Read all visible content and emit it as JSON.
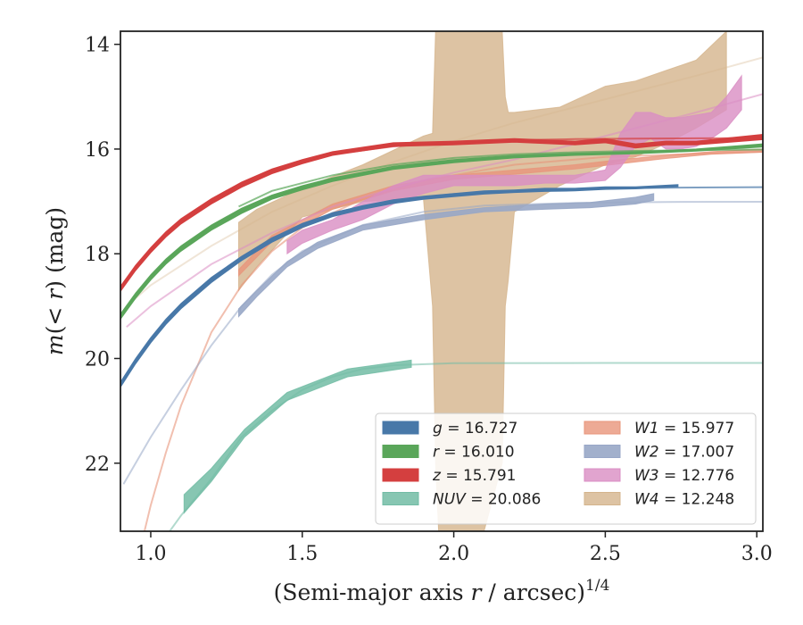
{
  "chart_data": {
    "type": "line",
    "xlabel": "(Semi-major axis r / arcsec)",
    "xlabel_exponent": "1/4",
    "ylabel": "m(< r) (mag)",
    "xlim": [
      0.9,
      3.02
    ],
    "ylim": [
      23.3,
      13.75
    ],
    "y_inverted": true,
    "grid": false,
    "legend_position": "lower-right",
    "xticks": [
      {
        "v": 1.0,
        "label": "1.0"
      },
      {
        "v": 1.5,
        "label": "1.5"
      },
      {
        "v": 2.0,
        "label": "2.0"
      },
      {
        "v": 2.5,
        "label": "2.5"
      },
      {
        "v": 3.0,
        "label": "3.0"
      }
    ],
    "yticks": [
      {
        "v": 14,
        "label": "14"
      },
      {
        "v": 16,
        "label": "16"
      },
      {
        "v": 18,
        "label": "18"
      },
      {
        "v": 20,
        "label": "20"
      },
      {
        "v": 22,
        "label": "22"
      }
    ],
    "legend": [
      {
        "key": "g",
        "band": "g",
        "value": "= 16.727"
      },
      {
        "key": "r",
        "band": "r",
        "value": "= 16.010"
      },
      {
        "key": "z",
        "band": "z",
        "value": "= 15.791"
      },
      {
        "key": "nuv",
        "band": "NUV",
        "value": "= 20.086"
      },
      {
        "key": "w1",
        "band": "W1",
        "value": "= 15.977"
      },
      {
        "key": "w2",
        "band": "W2",
        "value": "= 17.007"
      },
      {
        "key": "w3",
        "band": "W3",
        "value": "= 12.776"
      },
      {
        "key": "w4",
        "band": "W4",
        "value": "= 12.248"
      }
    ],
    "series": [
      {
        "key": "w4",
        "color": "#d4b48c",
        "opacity": 0.8,
        "model": {
          "x": [
            0.92,
            1.0,
            1.2,
            1.4,
            1.6,
            1.8,
            2.0,
            2.2,
            2.4,
            2.6,
            2.8,
            3.02
          ],
          "y": [
            19.0,
            18.6,
            17.85,
            17.2,
            16.7,
            16.25,
            15.85,
            15.5,
            15.2,
            14.9,
            14.6,
            14.25
          ],
          "opacity": 0.35
        },
        "band": {
          "x": [
            1.29,
            1.35,
            1.5,
            1.7,
            1.9,
            1.93,
            1.94,
            1.95,
            2.1,
            2.16,
            2.17,
            2.18,
            2.2,
            2.35,
            2.5,
            2.6,
            2.7,
            2.8,
            2.9
          ],
          "lo": [
            17.4,
            17.15,
            16.75,
            16.3,
            15.75,
            15.7,
            13.75,
            13.75,
            13.75,
            13.75,
            15.0,
            15.3,
            15.3,
            15.2,
            14.8,
            14.7,
            14.5,
            14.3,
            13.75
          ],
          "hi": [
            18.7,
            18.25,
            17.3,
            17.0,
            16.95,
            19.0,
            22.0,
            23.3,
            23.3,
            22.0,
            19.0,
            18.5,
            17.2,
            16.7,
            16.3,
            16.15,
            15.9,
            15.6,
            15.25
          ]
        }
      },
      {
        "key": "nuv",
        "color": "#72bca5",
        "opacity": 0.85,
        "model": {
          "x": [
            0.9,
            1.0,
            1.1,
            1.2,
            1.3,
            1.4,
            1.5,
            1.6,
            1.7,
            1.8,
            2.0,
            2.5,
            3.02
          ],
          "y": [
            24.5,
            23.8,
            23.0,
            22.3,
            21.5,
            21.0,
            20.6,
            20.35,
            20.2,
            20.13,
            20.09,
            20.086,
            20.086
          ],
          "opacity": 0.55
        },
        "band": {
          "x": [
            1.11,
            1.2,
            1.31,
            1.45,
            1.65,
            1.86
          ],
          "lo": [
            22.6,
            22.1,
            21.35,
            20.65,
            20.2,
            20.03
          ],
          "hi": [
            22.95,
            22.35,
            21.5,
            20.8,
            20.35,
            20.17
          ]
        }
      },
      {
        "key": "w1",
        "color": "#e8957a",
        "opacity": 0.8,
        "model": {
          "x": [
            0.9,
            0.95,
            1.0,
            1.05,
            1.1,
            1.2,
            1.3,
            1.4,
            1.5,
            1.7,
            1.9,
            2.2,
            2.5,
            3.02
          ],
          "y": [
            25.5,
            24.0,
            22.8,
            21.8,
            20.9,
            19.5,
            18.6,
            17.95,
            17.5,
            16.95,
            16.6,
            16.3,
            16.15,
            16.05
          ],
          "opacity": 0.6
        },
        "band": {
          "x": [
            1.29,
            1.4,
            1.6,
            1.8,
            2.0,
            2.2,
            2.4,
            2.55,
            2.7,
            2.85,
            3.02
          ],
          "lo": [
            18.3,
            17.65,
            17.05,
            16.7,
            16.5,
            16.4,
            16.3,
            16.2,
            16.12,
            16.05,
            16.0
          ],
          "hi": [
            18.42,
            17.77,
            17.15,
            16.8,
            16.58,
            16.48,
            16.38,
            16.28,
            16.18,
            16.1,
            16.06
          ]
        }
      },
      {
        "key": "w2",
        "color": "#98a7c7",
        "opacity": 0.9,
        "model": {
          "x": [
            0.91,
            1.0,
            1.1,
            1.2,
            1.3,
            1.4,
            1.5,
            1.7,
            1.9,
            2.1,
            2.4,
            2.7,
            3.02
          ],
          "y": [
            22.4,
            21.5,
            20.6,
            19.75,
            19.0,
            18.4,
            17.95,
            17.45,
            17.2,
            17.08,
            17.03,
            17.01,
            17.007
          ],
          "opacity": 0.55
        },
        "band": {
          "x": [
            1.29,
            1.35,
            1.45,
            1.55,
            1.7,
            1.9,
            2.1,
            2.3,
            2.45,
            2.6,
            2.66
          ],
          "lo": [
            19.05,
            18.7,
            18.15,
            17.78,
            17.45,
            17.25,
            17.12,
            17.05,
            17.02,
            16.92,
            16.85
          ],
          "hi": [
            19.2,
            18.82,
            18.25,
            17.9,
            17.55,
            17.35,
            17.2,
            17.15,
            17.12,
            17.05,
            16.98
          ]
        }
      },
      {
        "key": "w3",
        "color": "#da8dc3",
        "opacity": 0.8,
        "model": {
          "x": [
            0.92,
            1.0,
            1.2,
            1.4,
            1.6,
            1.8,
            2.0,
            2.2,
            2.4,
            2.6,
            2.8,
            3.02
          ],
          "y": [
            19.4,
            19.0,
            18.2,
            17.6,
            17.1,
            16.75,
            16.45,
            16.2,
            15.9,
            15.6,
            15.3,
            14.95
          ],
          "opacity": 0.55
        },
        "band": {
          "x": [
            1.45,
            1.5,
            1.6,
            1.7,
            1.8,
            1.9,
            2.0,
            2.1,
            2.2,
            2.3,
            2.4,
            2.5,
            2.55,
            2.6,
            2.65,
            2.7,
            2.75,
            2.8,
            2.85,
            2.9,
            2.95
          ],
          "lo": [
            17.75,
            17.55,
            17.35,
            17.0,
            16.7,
            16.5,
            16.5,
            16.5,
            16.5,
            16.5,
            16.5,
            16.4,
            15.7,
            15.3,
            15.3,
            15.4,
            15.4,
            15.35,
            15.3,
            15.0,
            14.6
          ],
          "hi": [
            18.0,
            17.8,
            17.55,
            17.35,
            17.05,
            16.85,
            16.7,
            16.7,
            16.7,
            16.65,
            16.65,
            16.6,
            16.35,
            15.95,
            15.8,
            16.0,
            16.0,
            15.95,
            15.8,
            15.6,
            15.25
          ]
        }
      },
      {
        "key": "g",
        "color": "#4878a8",
        "opacity": 1,
        "model": {
          "x": [
            1.29,
            1.4,
            1.6,
            1.8,
            2.0,
            2.2,
            2.4,
            2.6,
            2.8,
            3.02
          ],
          "y": [
            18.1,
            17.7,
            17.22,
            16.98,
            16.86,
            16.8,
            16.76,
            16.745,
            16.735,
            16.727
          ],
          "opacity": 0.7
        },
        "band": {
          "x": [
            0.9,
            0.95,
            1.0,
            1.05,
            1.1,
            1.2,
            1.3,
            1.4,
            1.5,
            1.6,
            1.7,
            1.8,
            1.9,
            2.0,
            2.1,
            2.2,
            2.3,
            2.4,
            2.5,
            2.6,
            2.74
          ],
          "lo": [
            20.45,
            20.0,
            19.6,
            19.25,
            18.95,
            18.45,
            18.05,
            17.7,
            17.42,
            17.22,
            17.08,
            16.97,
            16.9,
            16.85,
            16.8,
            16.78,
            16.75,
            16.75,
            16.72,
            16.72,
            16.68
          ],
          "hi": [
            20.55,
            20.1,
            19.7,
            19.35,
            19.05,
            18.55,
            18.13,
            17.78,
            17.5,
            17.29,
            17.15,
            17.04,
            16.96,
            16.91,
            16.86,
            16.83,
            16.81,
            16.8,
            16.77,
            16.76,
            16.72
          ]
        }
      },
      {
        "key": "r",
        "color": "#5aa65a",
        "opacity": 1,
        "model": {
          "x": [
            1.29,
            1.4,
            1.6,
            1.8,
            2.0,
            2.2,
            2.4,
            2.6,
            2.8,
            3.02
          ],
          "y": [
            17.1,
            16.8,
            16.5,
            16.3,
            16.17,
            16.1,
            16.06,
            16.035,
            16.02,
            16.01
          ],
          "opacity": 0.7
        },
        "band": {
          "x": [
            0.9,
            0.95,
            1.0,
            1.05,
            1.1,
            1.2,
            1.3,
            1.4,
            1.5,
            1.6,
            1.8,
            2.0,
            2.2,
            2.4,
            2.6,
            2.8,
            3.02
          ],
          "lo": [
            19.15,
            18.75,
            18.4,
            18.1,
            17.85,
            17.45,
            17.13,
            16.88,
            16.7,
            16.55,
            16.33,
            16.2,
            16.12,
            16.08,
            16.05,
            16.0,
            15.9
          ],
          "hi": [
            19.25,
            18.85,
            18.5,
            18.2,
            17.95,
            17.55,
            17.23,
            16.96,
            16.78,
            16.62,
            16.39,
            16.26,
            16.17,
            16.12,
            16.09,
            16.04,
            15.96
          ]
        }
      },
      {
        "key": "z",
        "color": "#d43f3f",
        "opacity": 1,
        "model": {
          "x": [
            1.29,
            1.4,
            1.6,
            1.8,
            2.0,
            2.2,
            2.4,
            2.6,
            2.8,
            3.02
          ],
          "y": [
            16.7,
            16.4,
            16.1,
            15.95,
            15.87,
            15.83,
            15.81,
            15.8,
            15.795,
            15.791
          ],
          "opacity": 0.7
        },
        "band": {
          "x": [
            0.9,
            0.95,
            1.0,
            1.05,
            1.1,
            1.2,
            1.3,
            1.4,
            1.5,
            1.6,
            1.8,
            2.0,
            2.2,
            2.4,
            2.5,
            2.6,
            2.7,
            2.8,
            3.02
          ],
          "lo": [
            18.62,
            18.22,
            17.88,
            17.58,
            17.33,
            16.95,
            16.63,
            16.38,
            16.2,
            16.05,
            15.88,
            15.85,
            15.8,
            15.85,
            15.8,
            15.9,
            15.85,
            15.85,
            15.72
          ],
          "hi": [
            18.72,
            18.32,
            17.98,
            17.68,
            17.43,
            17.05,
            16.73,
            16.47,
            16.28,
            16.12,
            15.95,
            15.92,
            15.87,
            15.92,
            15.88,
            15.98,
            15.92,
            15.92,
            15.82
          ]
        }
      }
    ]
  }
}
